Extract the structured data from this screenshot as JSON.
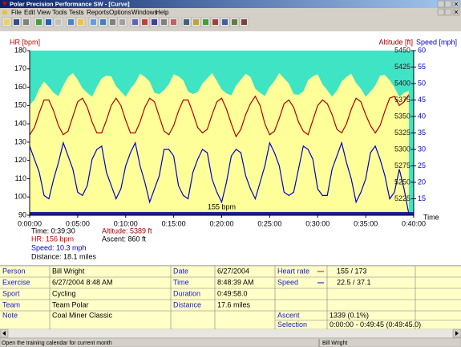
{
  "window": {
    "title": "Polar Precision Performance SW - [Curve]"
  },
  "menu": [
    "File",
    "Edit",
    "View",
    "Tools",
    "Tests",
    "Reports",
    "Options",
    "Windows",
    "Help"
  ],
  "chart_data": {
    "type": "line",
    "y_label": "HR [bpm]",
    "y2_label": "Altitude [ft]",
    "y3_label": "Speed [mph]",
    "x_label": "Time",
    "annotation": "155 bpm",
    "plot_background": "#3ee4c4",
    "xlim": [
      0,
      40
    ],
    "xticks": [
      {
        "value": 0,
        "label": "0:00:00"
      },
      {
        "value": 5,
        "label": "0:05:00"
      },
      {
        "value": 10,
        "label": "0:10:00"
      },
      {
        "value": 15,
        "label": "0:15:00"
      },
      {
        "value": 20,
        "label": "0:20:00"
      },
      {
        "value": 25,
        "label": "0:25:00"
      },
      {
        "value": 30,
        "label": "0:30:00"
      },
      {
        "value": 35,
        "label": "0:35:00"
      },
      {
        "value": 40,
        "label": "0:40:00"
      }
    ],
    "ylim": [
      90,
      180
    ],
    "yticks": [
      90,
      100,
      110,
      120,
      130,
      140,
      150,
      160,
      170,
      180
    ],
    "y2lim": [
      5200,
      5450
    ],
    "y2ticks": [
      5225,
      5250,
      5275,
      5300,
      5325,
      5350,
      5375,
      5400,
      5425,
      5450
    ],
    "y3lim": [
      10,
      60
    ],
    "y3ticks": [
      15,
      20,
      25,
      30,
      35,
      40,
      45,
      50,
      55,
      60
    ],
    "x": [
      0,
      0.5,
      1,
      1.5,
      2,
      2.5,
      3,
      3.5,
      4,
      4.5,
      5,
      5.5,
      6,
      6.5,
      7,
      7.5,
      8,
      8.5,
      9,
      9.5,
      10,
      10.5,
      11,
      11.5,
      12,
      12.5,
      13,
      13.5,
      14,
      14.5,
      15,
      15.5,
      16,
      16.5,
      17,
      17.5,
      18,
      18.5,
      19,
      19.5,
      20,
      20.5,
      21,
      21.5,
      22,
      22.5,
      23,
      23.5,
      24,
      24.5,
      25,
      25.5,
      26,
      26.5,
      27,
      27.5,
      28,
      28.5,
      29,
      29.5,
      30,
      30.5,
      31,
      31.5,
      32,
      32.5,
      33,
      33.5,
      34,
      34.5,
      35,
      35.5,
      36,
      36.5,
      37,
      37.5,
      38,
      38.5,
      39,
      39.5
    ],
    "series": [
      {
        "name": "Altitude",
        "type": "area",
        "axis": "y2",
        "color": "#ffff99",
        "values": [
          5368,
          5375,
          5392,
          5403,
          5395,
          5386,
          5381,
          5397,
          5410,
          5416,
          5406,
          5393,
          5386,
          5380,
          5395,
          5408,
          5412,
          5411,
          5396,
          5388,
          5380,
          5392,
          5401,
          5415,
          5410,
          5403,
          5386,
          5384,
          5390,
          5399,
          5414,
          5411,
          5405,
          5388,
          5384,
          5387,
          5400,
          5408,
          5416,
          5404,
          5391,
          5385,
          5382,
          5397,
          5406,
          5415,
          5410,
          5392,
          5386,
          5381,
          5395,
          5404,
          5416,
          5408,
          5400,
          5384,
          5383,
          5388,
          5405,
          5411,
          5414,
          5399,
          5390,
          5380,
          5389,
          5403,
          5410,
          5415,
          5401,
          5392,
          5380,
          5388,
          5397,
          5412,
          5413,
          5405,
          5394,
          5380,
          5386,
          5389
        ]
      },
      {
        "name": "Heart rate",
        "type": "line",
        "axis": "y",
        "color": "#b00000",
        "values": [
          134,
          138,
          146,
          153,
          153,
          147,
          139,
          134,
          136,
          144,
          152,
          154,
          149,
          141,
          135,
          135,
          142,
          150,
          154,
          150,
          142,
          135,
          135,
          141,
          149,
          154,
          152,
          144,
          136,
          134,
          139,
          147,
          153,
          153,
          146,
          138,
          135,
          137,
          145,
          152,
          154,
          148,
          140,
          133,
          137,
          145,
          151,
          155,
          150,
          140,
          134,
          136,
          143,
          151,
          153,
          149,
          141,
          136,
          134,
          142,
          150,
          153,
          151,
          145,
          137,
          135,
          140,
          148,
          154,
          152,
          145,
          139,
          135,
          139,
          147,
          154,
          155,
          150,
          152,
          156
        ]
      },
      {
        "name": "Speed",
        "type": "line",
        "axis": "y3",
        "color": "#0000cc",
        "values": [
          31,
          27,
          23,
          16,
          15,
          21,
          26,
          32,
          28,
          24,
          17,
          16,
          19,
          27,
          30,
          31,
          23,
          19,
          15,
          18,
          25,
          29,
          32,
          25,
          20,
          14,
          18,
          22,
          30,
          30,
          28,
          19,
          16,
          15,
          23,
          27,
          30,
          29,
          21,
          17,
          14,
          20,
          28,
          30,
          29,
          22,
          18,
          15,
          20,
          25,
          32,
          29,
          25,
          17,
          16,
          17,
          24,
          31,
          30,
          27,
          18,
          16,
          16,
          24,
          28,
          32,
          26,
          21,
          14,
          17,
          21,
          29,
          31,
          27,
          22,
          15,
          17,
          24,
          18,
          10.3
        ]
      }
    ]
  },
  "cursor_info": {
    "time": "Time: 0:39:30",
    "hr": "HR: 156 bpm",
    "speed": "Speed: 10.3 mph",
    "distance": "Distance: 18.1 miles",
    "altitude": "Altitude: 5389 ft",
    "ascent": "Ascent: 860 ft"
  },
  "info_table": {
    "person": {
      "label": "Person",
      "value": "Bill Wright"
    },
    "exercise": {
      "label": "Exercise",
      "value": "6/27/2004 8:48 AM"
    },
    "sport": {
      "label": "Sport",
      "value": "Cycling"
    },
    "team": {
      "label": "Team",
      "value": "Team Polar"
    },
    "note": {
      "label": "Note",
      "value": "Coal Miner Classic"
    },
    "date": {
      "label": "Date",
      "value": "6/27/2004"
    },
    "time": {
      "label": "Time",
      "value": "8:48:39 AM"
    },
    "duration": {
      "label": "Duration",
      "value": "0:49:58.0"
    },
    "distance": {
      "label": "Distance",
      "value": "17.6 miles"
    },
    "heart_rate": {
      "label": "Heart rate",
      "value": "155 / 173"
    },
    "speed": {
      "label": "Speed",
      "value": "22.5 / 37.1"
    },
    "ascent": {
      "label": "Ascent",
      "value": "1339 (0.1%)"
    },
    "selection": {
      "label": "Selection",
      "value": "0:00:00 - 0:49:45 (0:49:45.0)"
    }
  },
  "status_bar": {
    "message": "Open the training calendar for current month",
    "user": "Bill Wright"
  }
}
